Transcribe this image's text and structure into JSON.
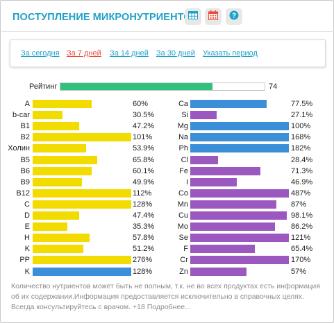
{
  "header": {
    "title": "ПОСТУПЛЕНИЕ МИКРОНУТРИЕНТОВ",
    "icons": [
      "table-icon",
      "calendar-icon",
      "help-icon"
    ]
  },
  "periods": [
    {
      "label": "За сегодня",
      "active": false
    },
    {
      "label": "За 7 дней",
      "active": true
    },
    {
      "label": "За 14 дней",
      "active": false
    },
    {
      "label": "За 30 дней",
      "active": false
    },
    {
      "label": "Указать период",
      "active": false
    }
  ],
  "rating": {
    "label": "Рейтинг",
    "value": "74",
    "fraction": 0.74
  },
  "colors": {
    "yellow": "#f2dc00",
    "blue": "#3b8fd8",
    "purple": "#9b59c0",
    "green": "#2ec27e",
    "accent": "#1ea2c6",
    "link": "#1ea2c6",
    "active_link": "#e74c3c"
  },
  "left_nutrients": [
    {
      "name": "A",
      "pct": "60%",
      "value": 60,
      "color": "yellow"
    },
    {
      "name": "b-car",
      "pct": "30.5%",
      "value": 30.5,
      "color": "yellow"
    },
    {
      "name": "B1",
      "pct": "47.2%",
      "value": 47.2,
      "color": "yellow"
    },
    {
      "name": "B2",
      "pct": "101%",
      "value": 101,
      "color": "yellow"
    },
    {
      "name": "Холин",
      "pct": "53.9%",
      "value": 53.9,
      "color": "yellow"
    },
    {
      "name": "B5",
      "pct": "65.8%",
      "value": 65.8,
      "color": "yellow"
    },
    {
      "name": "B6",
      "pct": "60.1%",
      "value": 60.1,
      "color": "yellow"
    },
    {
      "name": "B9",
      "pct": "49.9%",
      "value": 49.9,
      "color": "yellow"
    },
    {
      "name": "B12",
      "pct": "112%",
      "value": 112,
      "color": "yellow"
    },
    {
      "name": "C",
      "pct": "128%",
      "value": 128,
      "color": "yellow"
    },
    {
      "name": "D",
      "pct": "47.4%",
      "value": 47.4,
      "color": "yellow"
    },
    {
      "name": "E",
      "pct": "35.3%",
      "value": 35.3,
      "color": "yellow"
    },
    {
      "name": "H",
      "pct": "57.8%",
      "value": 57.8,
      "color": "yellow"
    },
    {
      "name": "K",
      "pct": "51.2%",
      "value": 51.2,
      "color": "yellow"
    },
    {
      "name": "PP",
      "pct": "276%",
      "value": 276,
      "color": "yellow"
    },
    {
      "name": "K",
      "pct": "128%",
      "value": 128,
      "color": "blue"
    }
  ],
  "right_nutrients": [
    {
      "name": "Ca",
      "pct": "77.5%",
      "value": 77.5,
      "color": "blue"
    },
    {
      "name": "Si",
      "pct": "27.1%",
      "value": 27.1,
      "color": "purple"
    },
    {
      "name": "Mg",
      "pct": "100%",
      "value": 100,
      "color": "blue"
    },
    {
      "name": "Na",
      "pct": "168%",
      "value": 168,
      "color": "blue"
    },
    {
      "name": "Ph",
      "pct": "182%",
      "value": 182,
      "color": "blue"
    },
    {
      "name": "Cl",
      "pct": "28.4%",
      "value": 28.4,
      "color": "purple"
    },
    {
      "name": "Fe",
      "pct": "71.3%",
      "value": 71.3,
      "color": "purple"
    },
    {
      "name": "I",
      "pct": "46.9%",
      "value": 46.9,
      "color": "purple"
    },
    {
      "name": "Co",
      "pct": "487%",
      "value": 487,
      "color": "purple"
    },
    {
      "name": "Mn",
      "pct": "87%",
      "value": 87,
      "color": "purple"
    },
    {
      "name": "Cu",
      "pct": "98.1%",
      "value": 98.1,
      "color": "purple"
    },
    {
      "name": "Mo",
      "pct": "86.2%",
      "value": 86.2,
      "color": "purple"
    },
    {
      "name": "Se",
      "pct": "121%",
      "value": 121,
      "color": "purple"
    },
    {
      "name": "F",
      "pct": "65.4%",
      "value": 65.4,
      "color": "purple"
    },
    {
      "name": "Cr",
      "pct": "170%",
      "value": 170,
      "color": "purple"
    },
    {
      "name": "Zn",
      "pct": "57%",
      "value": 57,
      "color": "purple"
    }
  ],
  "footer": {
    "text": "Количество нутриентов может быть не полным, т.к. не во всех продуктах есть информация об их содержании.Информация предоставляется исключительно в справочных целях. Всегда консультируйтесь с врачом. +18 Подробнее..."
  }
}
